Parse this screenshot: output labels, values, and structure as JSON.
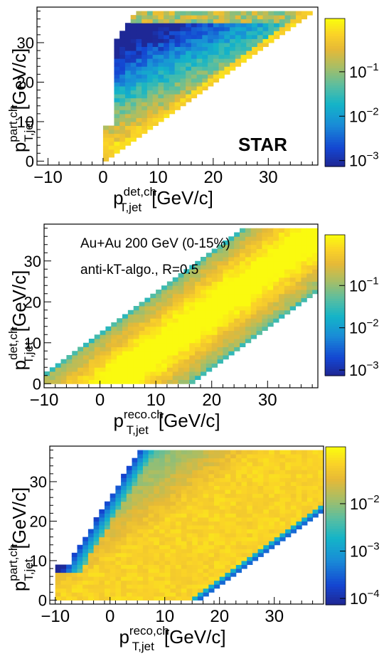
{
  "chart_data": [
    {
      "type": "heatmap",
      "xlabel": {
        "base": "p",
        "sup": "det,ch",
        "sub": "T,jet",
        "unit": "[GeV/c]"
      },
      "ylabel": {
        "base": "p",
        "sup": "part,ch",
        "sub": "T,jet",
        "unit": "[GeV/c]"
      },
      "xlim": [
        -12,
        39
      ],
      "ylim": [
        -1,
        39
      ],
      "x_ticks": [
        "−10",
        "0",
        "10",
        "20",
        "30"
      ],
      "y_ticks": [
        "0",
        "10",
        "20",
        "30"
      ],
      "z_scale": "log",
      "zlim": [
        0.001,
        0.9
      ],
      "colorbar_ticks": [
        {
          "base": "10",
          "exp": "−1"
        },
        {
          "base": "10",
          "exp": "−2"
        },
        {
          "base": "10",
          "exp": "−3"
        }
      ],
      "annotations": [
        "STAR"
      ],
      "region": {
        "description": "response matrix, support x>=0, y>=x",
        "x_min": 0,
        "x_max": 38,
        "y_min": 0,
        "y_max": 38
      }
    },
    {
      "type": "heatmap",
      "xlabel": {
        "base": "p",
        "sup": "reco.ch",
        "sub": "T,jet",
        "unit": "[GeV/c]"
      },
      "ylabel": {
        "base": "p",
        "sup": "det,ch",
        "sub": "T,jet",
        "unit": "[GeV/c]"
      },
      "xlim": [
        -10,
        39
      ],
      "ylim": [
        -1,
        39
      ],
      "x_ticks": [
        "−10",
        "0",
        "10",
        "20",
        "30"
      ],
      "y_ticks": [
        "0",
        "10",
        "20",
        "30"
      ],
      "z_scale": "log",
      "zlim": [
        0.001,
        0.9
      ],
      "colorbar_ticks": [
        {
          "base": "10",
          "exp": "−1"
        },
        {
          "base": "10",
          "exp": "−2"
        },
        {
          "base": "10",
          "exp": "−3"
        }
      ],
      "annotations": [
        "Au+Au 200 GeV (0-15%)",
        "anti-kT-algo., R=0.5"
      ],
      "region": {
        "band_lower_offset": -16,
        "band_upper_offset": 12
      }
    },
    {
      "type": "heatmap",
      "xlabel": {
        "base": "p",
        "sup": "reco,ch",
        "sub": "T,jet",
        "unit": "[GeV/c]"
      },
      "ylabel": {
        "base": "p",
        "sup": "part,ch",
        "sub": "T,jet",
        "unit": "[GeV/c]"
      },
      "xlim": [
        -11,
        39
      ],
      "ylim": [
        -1,
        39
      ],
      "x_ticks": [
        "−10",
        "0",
        "10",
        "20",
        "30"
      ],
      "y_ticks": [
        "0",
        "10",
        "20",
        "30"
      ],
      "z_scale": "log",
      "zlim": [
        0.0001,
        0.08
      ],
      "colorbar_ticks": [
        {
          "base": "10",
          "exp": "−2"
        },
        {
          "base": "10",
          "exp": "−3"
        },
        {
          "base": "10",
          "exp": "−4"
        }
      ],
      "region": {
        "x_min": -10,
        "y_min": 0,
        "y_max": 38,
        "band_lower_offset": -16
      }
    }
  ]
}
